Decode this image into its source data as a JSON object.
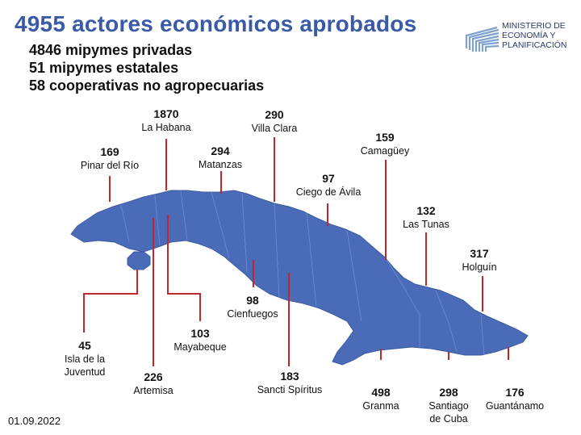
{
  "title": "4955 actores económicos aprobados",
  "subtitles": [
    "4846 mipymes privadas",
    "51 mipymes estatales",
    "58 cooperativas no agropecuarias"
  ],
  "logo": {
    "line1": "MINISTERIO DE",
    "line2": "ECONOMÍA Y",
    "line3": "PLANIFICACIÓN"
  },
  "date": "01.09.2022",
  "colors": {
    "map": "#4a6cb8",
    "title": "#3a5aa8",
    "leader": "#c0282d"
  },
  "provinces": [
    {
      "id": "pinar",
      "value": "169",
      "name": "Pinar del Río"
    },
    {
      "id": "habana",
      "value": "1870",
      "name": "La Habana"
    },
    {
      "id": "matanzas",
      "value": "294",
      "name": "Matanzas"
    },
    {
      "id": "villaclara",
      "value": "290",
      "name": "Villa Clara"
    },
    {
      "id": "ciego",
      "value": "97",
      "name": "Ciego de Ávila"
    },
    {
      "id": "camaguey",
      "value": "159",
      "name": "Camagüey"
    },
    {
      "id": "lastunas",
      "value": "132",
      "name": "Las Tunas"
    },
    {
      "id": "holguin",
      "value": "317",
      "name": "Holguín"
    },
    {
      "id": "isla",
      "value": "45",
      "name": "Isla de la\nJuventud"
    },
    {
      "id": "artemisa",
      "value": "226",
      "name": "Artemisa"
    },
    {
      "id": "mayabeque",
      "value": "103",
      "name": "Mayabeque"
    },
    {
      "id": "cienfuegos",
      "value": "98",
      "name": "Cienfuegos"
    },
    {
      "id": "sancti",
      "value": "183",
      "name": "Sancti Spíritus"
    },
    {
      "id": "granma",
      "value": "498",
      "name": "Granma"
    },
    {
      "id": "santiago",
      "value": "298",
      "name": "Santiago\nde Cuba"
    },
    {
      "id": "guantanamo",
      "value": "176",
      "name": "Guantánamo"
    }
  ]
}
